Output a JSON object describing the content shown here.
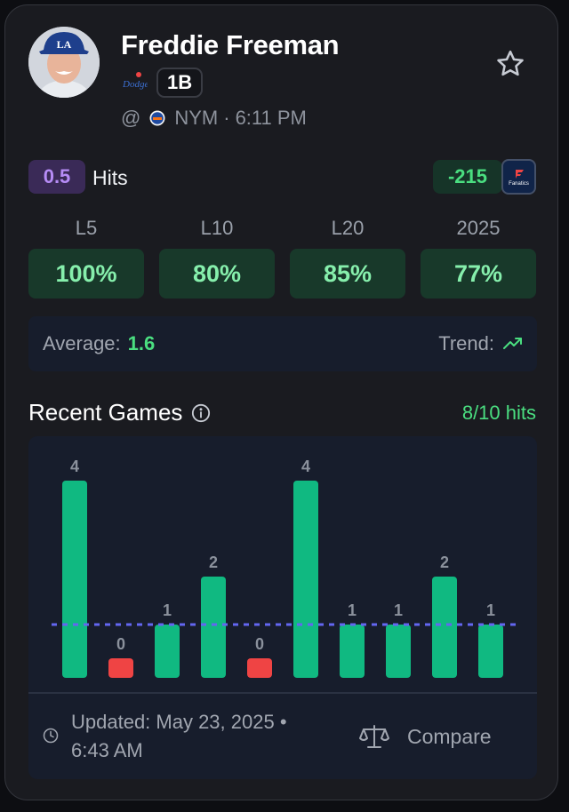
{
  "player": {
    "name": "Freddie Freeman",
    "position": "1B",
    "matchup_prefix": "@",
    "opponent": "NYM",
    "game_time": "6:11 PM"
  },
  "prop": {
    "line": "0.5",
    "stat": "Hits",
    "odds": "-215",
    "book": "Fanatics"
  },
  "splits": [
    {
      "label": "L5",
      "value": "100%"
    },
    {
      "label": "L10",
      "value": "80%"
    },
    {
      "label": "L20",
      "value": "85%"
    },
    {
      "label": "2025",
      "value": "77%"
    }
  ],
  "summary": {
    "average_label": "Average:",
    "average_value": "1.6",
    "trend_label": "Trend:",
    "trend_direction": "up"
  },
  "recent_games": {
    "title": "Recent Games",
    "hit_rate": "8/10 hits",
    "updated": "Updated: May 23, 2025 • 6:43 AM",
    "compare_label": "Compare"
  },
  "chart_data": {
    "type": "bar",
    "values": [
      4,
      0,
      1,
      2,
      0,
      4,
      1,
      1,
      2,
      1
    ],
    "labels": [
      "4",
      "0",
      "1",
      "2",
      "0",
      "4",
      "1",
      "1",
      "2",
      "1"
    ],
    "reference_line": 0.5,
    "ylim": [
      0,
      4
    ],
    "colors": {
      "hit": "#10b981",
      "miss": "#ef4444",
      "reference": "#6366f1",
      "label": "#8b919c"
    }
  },
  "colors": {
    "accent_green": "#4ade80",
    "line_purple": "#b68cf6",
    "card_bg": "#1a1b20"
  },
  "icons": {
    "favorite": "star-icon",
    "info": "info-icon",
    "trend": "trend-up-icon",
    "clock": "clock-icon",
    "compare": "scale-icon"
  }
}
